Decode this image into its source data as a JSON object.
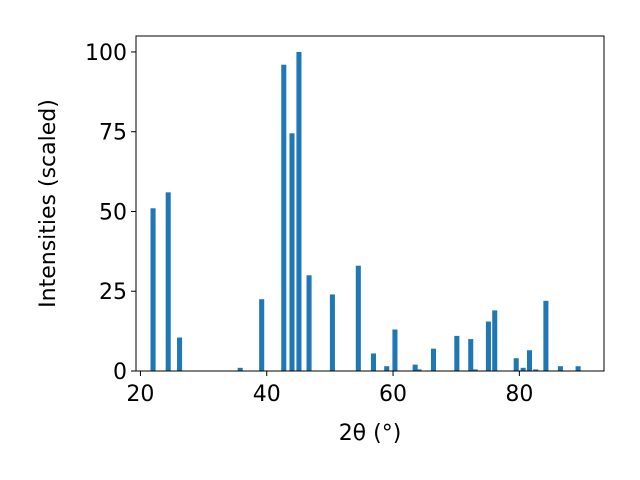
{
  "chart_data": {
    "type": "bar",
    "title": "",
    "xlabel": "2θ (°)",
    "ylabel": "Intensities (scaled)",
    "xlim": [
      19.3,
      93.4
    ],
    "ylim": [
      0,
      105
    ],
    "xticks": [
      20,
      40,
      60,
      80
    ],
    "yticks": [
      0,
      25,
      50,
      75,
      100
    ],
    "bar_width": 0.8,
    "bar_color": "#1f77b4",
    "grid": false,
    "points": [
      {
        "x": 22.0,
        "y": 51
      },
      {
        "x": 24.4,
        "y": 56
      },
      {
        "x": 26.2,
        "y": 10.5
      },
      {
        "x": 35.8,
        "y": 1
      },
      {
        "x": 39.2,
        "y": 22.5
      },
      {
        "x": 42.7,
        "y": 96
      },
      {
        "x": 44.0,
        "y": 74.5
      },
      {
        "x": 45.1,
        "y": 100
      },
      {
        "x": 46.7,
        "y": 30
      },
      {
        "x": 50.4,
        "y": 24
      },
      {
        "x": 54.5,
        "y": 33
      },
      {
        "x": 56.9,
        "y": 5.5
      },
      {
        "x": 59.0,
        "y": 1.5
      },
      {
        "x": 60.3,
        "y": 13
      },
      {
        "x": 63.5,
        "y": 2
      },
      {
        "x": 64.1,
        "y": 0.5
      },
      {
        "x": 66.4,
        "y": 7
      },
      {
        "x": 70.1,
        "y": 11
      },
      {
        "x": 72.3,
        "y": 10
      },
      {
        "x": 73.0,
        "y": 0.5
      },
      {
        "x": 75.1,
        "y": 15.5
      },
      {
        "x": 76.1,
        "y": 19
      },
      {
        "x": 79.5,
        "y": 4
      },
      {
        "x": 80.6,
        "y": 1
      },
      {
        "x": 81.6,
        "y": 6.5
      },
      {
        "x": 82.6,
        "y": 0.5
      },
      {
        "x": 84.2,
        "y": 22
      },
      {
        "x": 86.5,
        "y": 1.5
      },
      {
        "x": 89.3,
        "y": 1.5
      }
    ]
  }
}
